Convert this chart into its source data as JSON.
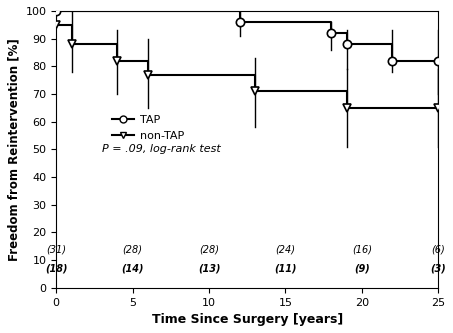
{
  "title": "",
  "xlabel": "Time Since Surgery [years]",
  "ylabel": "Freedom from Reintervention [%]",
  "xlim": [
    0,
    25
  ],
  "ylim": [
    0,
    100
  ],
  "yticks": [
    0,
    10,
    20,
    30,
    40,
    50,
    60,
    70,
    80,
    90,
    100
  ],
  "xticks": [
    0,
    5,
    10,
    15,
    20,
    25
  ],
  "legend_label_TAP": "TAP",
  "legend_label_nonTAP": "non-TAP",
  "pvalue_text": "P = .09, log-rank test",
  "TAP": {
    "step_x": [
      0,
      12,
      12,
      18,
      18,
      19,
      19,
      22,
      22,
      25
    ],
    "step_y": [
      100,
      100,
      96,
      96,
      92,
      92,
      88,
      88,
      82,
      82
    ],
    "ci_x": [
      0,
      12,
      18,
      19,
      22,
      25
    ],
    "ci_upper": [
      100,
      100,
      96,
      93,
      93,
      93
    ],
    "ci_lower": [
      100,
      91,
      86,
      79,
      78,
      70
    ],
    "marker_x": [
      0,
      12,
      18,
      19,
      22,
      25
    ],
    "marker_y": [
      100,
      96,
      92,
      88,
      82,
      82
    ],
    "color": "#000000",
    "marker": "o"
  },
  "nonTAP": {
    "step_x": [
      0,
      0,
      1,
      1,
      4,
      4,
      6,
      6,
      13,
      13,
      19,
      19,
      25
    ],
    "step_y": [
      100,
      95,
      95,
      88,
      88,
      82,
      82,
      77,
      77,
      71,
      71,
      65,
      65
    ],
    "ci_x": [
      0,
      1,
      4,
      6,
      13,
      19,
      25
    ],
    "ci_upper": [
      100,
      100,
      93,
      90,
      83,
      79,
      79
    ],
    "ci_lower": [
      100,
      78,
      70,
      65,
      58,
      51,
      51
    ],
    "marker_x": [
      0,
      1,
      4,
      6,
      13,
      19,
      25
    ],
    "marker_y": [
      95,
      88,
      82,
      77,
      71,
      65,
      65
    ],
    "color": "#000000",
    "marker": "v"
  },
  "at_risk_TAP_x": [
    0,
    5,
    10,
    15,
    20,
    25
  ],
  "at_risk_TAP_labels": [
    "(31)",
    "(28)",
    "(28)",
    "(24)",
    "(16)",
    "(6)"
  ],
  "at_risk_nonTAP_x": [
    0,
    5,
    10,
    15,
    20,
    25
  ],
  "at_risk_nonTAP_labels": [
    "(18)",
    "(14)",
    "(13)",
    "(11)",
    "(9)",
    "(3)"
  ],
  "background_color": "#ffffff"
}
